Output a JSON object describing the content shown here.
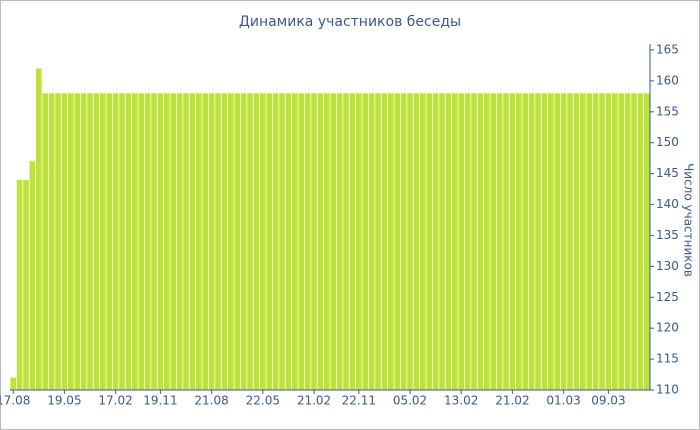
{
  "chart_data": {
    "type": "bar",
    "title": "Динамика участников беседы",
    "y_label": "Число участников",
    "categories": [
      "17.08",
      null,
      null,
      null,
      null,
      null,
      null,
      null,
      "19.05",
      null,
      null,
      null,
      null,
      null,
      null,
      null,
      "17.02",
      null,
      null,
      null,
      null,
      null,
      null,
      "19.11",
      null,
      null,
      null,
      null,
      null,
      null,
      null,
      "21.08",
      null,
      null,
      null,
      null,
      null,
      null,
      null,
      "22.05",
      null,
      null,
      null,
      null,
      null,
      null,
      null,
      "21.02",
      null,
      null,
      null,
      null,
      null,
      null,
      "22.11",
      null,
      null,
      null,
      null,
      null,
      null,
      null,
      "05.02",
      null,
      null,
      null,
      null,
      null,
      null,
      null,
      "13.02",
      null,
      null,
      null,
      null,
      null,
      null,
      null,
      "21.02",
      null,
      null,
      null,
      null,
      null,
      null,
      null,
      "01.03",
      null,
      null,
      null,
      null,
      null,
      null,
      "09.03",
      null,
      null,
      null,
      null,
      null,
      null
    ],
    "values": [
      112,
      144,
      144,
      147,
      162,
      158,
      158,
      158,
      158,
      158,
      158,
      158,
      158,
      158,
      158,
      158,
      158,
      158,
      158,
      158,
      158,
      158,
      158,
      158,
      158,
      158,
      158,
      158,
      158,
      158,
      158,
      158,
      158,
      158,
      158,
      158,
      158,
      158,
      158,
      158,
      158,
      158,
      158,
      158,
      158,
      158,
      158,
      158,
      158,
      158,
      158,
      158,
      158,
      158,
      158,
      158,
      158,
      158,
      158,
      158,
      158,
      158,
      158,
      158,
      158,
      158,
      158,
      158,
      158,
      158,
      158,
      158,
      158,
      158,
      158,
      158,
      158,
      158,
      158,
      158,
      158,
      158,
      158,
      158,
      158,
      158,
      158,
      158,
      158,
      158,
      158,
      158,
      158,
      158,
      158,
      158,
      158,
      158,
      158,
      158
    ],
    "color": "#bde23a",
    "ylim": [
      110,
      165
    ],
    "yticks": [
      110,
      115,
      120,
      125,
      130,
      135,
      140,
      145,
      150,
      155,
      160,
      165
    ],
    "y_axis_side": "right"
  }
}
